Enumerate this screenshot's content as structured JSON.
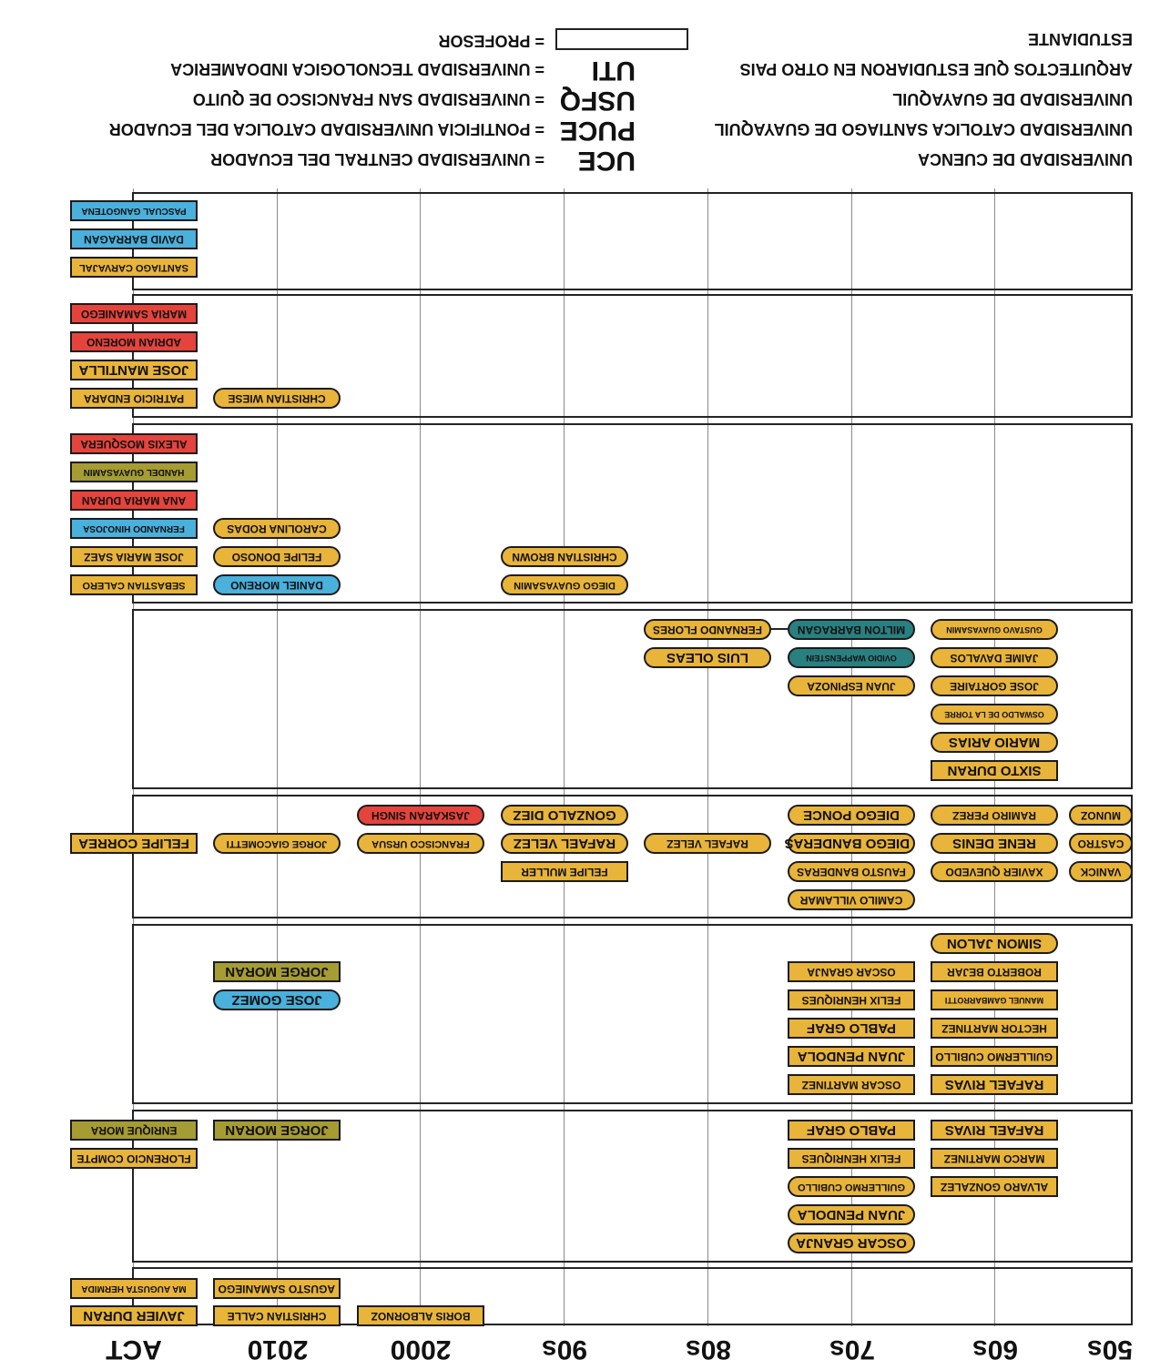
{
  "colors": {
    "yellow": "#e8b43a",
    "blue": "#4ab0dc",
    "red": "#e5443c",
    "olive": "#a69c34",
    "teal": "#2a7f80",
    "grid": "#8a8a8a"
  },
  "timeline": {
    "decades": [
      "50s",
      "60s",
      "70s",
      "80s",
      "90s",
      "2000",
      "2010",
      "ACT"
    ]
  },
  "legend": {
    "left": [
      "ESTUDIANTE",
      "ARQUITECTOS QUE ESTUDIARON EN OTRO PAIS",
      "UNIVERSIDAD DE GUAYAQUIL",
      "UNIVERSIDAD CATOLICA SANTIAGO DE GUAYAQUIL",
      "UNIVERSIDAD DE CUENCA"
    ],
    "profesor": "= PROFESOR",
    "codes": [
      {
        "code": "UTI",
        "name": "= UNIVERSIDAD TECNOLOGICA INDOAMERICA"
      },
      {
        "code": "USFQ",
        "name": "= UNIVERSIDAD SAN FRANCISCO DE QUITO"
      },
      {
        "code": "PUCE",
        "name": "= PONTIFICIA UNIVERSIDAD CATOLICA DEL ECUADOR"
      },
      {
        "code": "UCE",
        "name": "= UNIVERSIDAD CENTRAL DEL ECUADOR"
      }
    ]
  },
  "people": {
    "boris_albornoz": "BORIS ALBORNOZ",
    "christian_calle": "CHRISTIAN CALLE",
    "agusto_samaniego": "AGUSTO SAMANIEGO",
    "javier_duran": "JAVIER DURAN",
    "ma_augusta_hermida": "MA AUGUSTA HERMIDA",
    "oscar_granja": "OSCAR GRANJA",
    "juan_pendola": "JUAN PENDOLA",
    "guillermo_cubillo": "GUILLERMO CUBILLO",
    "felix_henriques": "FELIX HENRIQUES",
    "pablo_graf": "PABLO GRAF",
    "alvaro_gonzalez": "ALVARO GONZALEZ",
    "marco_martinez": "MARCO MARTINEZ",
    "rafael_rivas": "RAFAEL RIVAS",
    "jorge_moran": "JORGE MORAN",
    "florencio_compte": "FLORENCIO COMPTE",
    "enrique_mora": "ENRIQUE MORA",
    "oscar_martinez": "OSCAR MARTINEZ",
    "hector_martinez": "HECTOR MARTINEZ",
    "manuel_gambarrotti": "MANUEL GAMBARROTTI",
    "roberto_bejar": "ROBERTO BEJAR",
    "simon_jalon": "SIMON JALON",
    "jose_gomez": "JOSE GOMEZ",
    "camilo_villamar": "CAMILO VILLAMAR",
    "fausto_banderas": "FAUSTO BANDERAS",
    "diego_banderas": "DIEGO BANDERAS",
    "diego_ponce": "DIEGO PONCE",
    "xavier_quevedo": "XAVIER QUEVEDO",
    "rene_denis": "RENE DENIS",
    "ramiro_perez": "RAMIRO PEREZ",
    "felipe_muller": "FELIPE MULLER",
    "rafael_velez": "RAFAEL VELEZ",
    "gonzalo_diez": "GONZALO DIEZ",
    "francisco_ursua": "FRANCISCO URSUA",
    "jaskaran_singh": "JASKARAN SINGH",
    "jorge_giacometti": "JORGE GIACOMETTI",
    "felipe_correa": "FELIPE CORREA",
    "sixto_duran": "SIXTO DURAN",
    "mario_arias": "MARIO ARIAS",
    "oswaldo_de_la_torre": "OSWALDO DE LA TORRE",
    "jose_gortaire": "JOSE GORTAIRE",
    "jaime_davalos": "JAIME DAVALOS",
    "gustavo_guayasamin": "GUSTAVO GUAYASAMIN",
    "juan_espinoza": "JUAN ESPINOZA",
    "ovidio_wappenstein": "OVIDIO WAPPENSTEIN",
    "milton_barragan": "MILTON BARRAGAN",
    "luis_oleas": "LUIS OLEAS",
    "fernando_flores": "FERNANDO FLORES",
    "diego_guayasamin": "DIEGO GUAYASAMIN",
    "christian_brown": "CHRISTIAN BROWN",
    "daniel_moreno": "DANIEL MORENO",
    "felipe_donoso": "FELIPE DONOSO",
    "carolina_rodas": "CAROLINA RODAS",
    "sebastian_calero": "SEBASTIAN CALERO",
    "jose_maria_saez": "JOSE MARIA SAEZ",
    "fernando_hinojosa": "FERNANDO HINOJOSA",
    "ana_maria_duran": "ANA MARIA DURAN",
    "handel_guayasamin": "HANDEL GUAYASAMIN",
    "alexis_mosquera": "ALEXIS MOSQUERA",
    "christian_wiese": "CHRISTIAN WIESE",
    "patricio_endara": "PATRICIO ENDARA",
    "jose_mantilla": "JOSE MANTILLA",
    "adrian_moreno": "ADRIAN MORENO",
    "maria_samaniego": "MARIA SAMANIEGO",
    "santiago_carvajal": "SANTIAGO CARVAJAL",
    "david_barragan": "DAVID BARRAGAN",
    "pascual_gangotena": "PASCUAL GANGOTENA",
    "munoz": "MUNOZ",
    "castro": "CASTRO",
    "vanick": "VANICK"
  }
}
